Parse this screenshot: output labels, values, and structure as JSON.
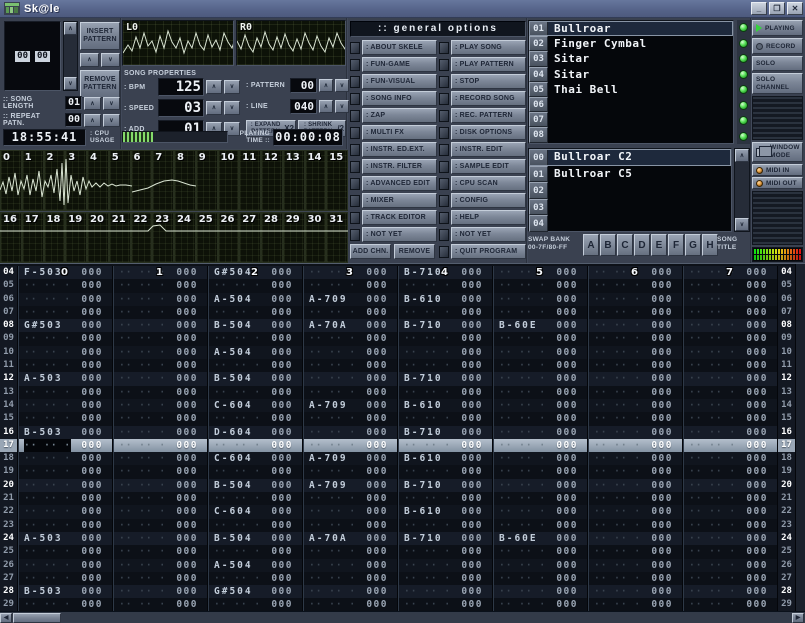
{
  "window": {
    "title": "Sk@le",
    "minimize": "_",
    "maximize": "❐",
    "close": "✕"
  },
  "order_panel": {
    "rows": [
      {
        "position": "00",
        "pattern": "00"
      }
    ],
    "insert_button": "INSERT PATTERN",
    "remove_button": "REMOVE PATTERN",
    "song_length_label": ":: SONG LENGTH",
    "song_length_value": "01",
    "repeat_label": ":: REPEAT PATN.",
    "repeat_value": "00"
  },
  "scopes": {
    "left": "L0",
    "right": "R0"
  },
  "song_properties": {
    "title": "SONG PROPERTIES",
    "bpm_label": ": BPM",
    "bpm_value": "125",
    "speed_label": ": SPEED",
    "speed_value": "03",
    "add_label": ": ADD",
    "add_value": "01",
    "pattern_label": ": PATTERN",
    "pattern_value": "00",
    "line_label": ": LINE",
    "line_value": "040",
    "expand_label": ": EXPAND PATTERN",
    "expand_value": "X2",
    "shrink_label": ": SHRINK PATTERN",
    "shrink_value": "/2"
  },
  "status": {
    "clock": "18:55:41",
    "cpu_label": ": CPU USAGE",
    "playing_label": "PLAYING TIME ::",
    "playing_time": "00:00:08"
  },
  "channel_scopes": {
    "row1": [
      "0",
      "1",
      "2",
      "3",
      "4",
      "5",
      "6",
      "7",
      "8",
      "9",
      "10",
      "11",
      "12",
      "13",
      "14",
      "15"
    ],
    "row2": [
      "16",
      "17",
      "18",
      "19",
      "20",
      "21",
      "22",
      "23",
      "24",
      "25",
      "26",
      "27",
      "28",
      "29",
      "30",
      "31"
    ]
  },
  "menu": {
    "title": ":: general options",
    "left_items": [
      ": ABOUT SKELE",
      ": FUN-GAME",
      ": FUN-VISUAL",
      ": SONG INFO",
      ": ZAP",
      ": MULTI FX",
      ": INSTR. ED.EXT.",
      ": INSTR. FILTER",
      ": ADVANCED EDIT",
      ": MIXER",
      ": TRACK EDITOR",
      ": NOT YET"
    ],
    "left_bottom": [
      "ADD CHN.",
      "REMOVE"
    ],
    "right_items": [
      ": PLAY SONG",
      ": PLAY PATTERN",
      ": STOP",
      ": RECORD SONG",
      ": REC. PATTERN",
      ": DISK OPTIONS",
      ": INSTR. EDIT",
      ": SAMPLE EDIT",
      ": CPU SCAN",
      ": CONFIG",
      ": HELP",
      ": NOT YET",
      ": QUIT PROGRAM"
    ]
  },
  "instruments": [
    {
      "num": "01",
      "name": "Bullroar",
      "selected": true
    },
    {
      "num": "02",
      "name": "Finger Cymbal"
    },
    {
      "num": "03",
      "name": "Sitar"
    },
    {
      "num": "04",
      "name": "Sitar"
    },
    {
      "num": "05",
      "name": "Thai Bell"
    },
    {
      "num": "06",
      "name": ""
    },
    {
      "num": "07",
      "name": ""
    },
    {
      "num": "08",
      "name": ""
    }
  ],
  "samples": [
    {
      "num": "00",
      "name": "Bullroar C2",
      "selected": true
    },
    {
      "num": "01",
      "name": "Bullroar C5"
    },
    {
      "num": "02",
      "name": ""
    },
    {
      "num": "03",
      "name": ""
    },
    {
      "num": "04",
      "name": ""
    }
  ],
  "swap_bank": {
    "label": "SWAP BANK 00-7F/80-FF",
    "buttons": [
      "A",
      "B",
      "C",
      "D",
      "E",
      "F",
      "G",
      "H"
    ],
    "song_title": "SONG TITLE"
  },
  "transport": {
    "playing": "PLAYING",
    "record": "RECORD",
    "solo": "SOLO",
    "solo_channel": "SOLO CHANNEL",
    "window_mode": "WINDOW MODE",
    "midi_in": "MIDI IN",
    "midi_out": "MIDI OUT"
  },
  "colors": {
    "led_green": "#55e055",
    "midi_led": "#e09a3e",
    "cursor_bar": "#9aa7b6",
    "play_icon": "#35d23c",
    "panel": "#3a4150",
    "pattern_bg": "#0d1118"
  },
  "pattern_editor": {
    "channel_headers": [
      "0",
      "1",
      "2",
      "3",
      "4",
      "5",
      "6",
      "7"
    ],
    "cursor_row": "17",
    "empty_effect": "000",
    "empty_note": "·· ·· ·",
    "rows": [
      {
        "n": "04",
        "cells": [
          "F-503",
          "",
          "G#504",
          "",
          "B-710",
          "",
          "",
          ""
        ]
      },
      {
        "n": "05",
        "cells": [
          "",
          "",
          "",
          "",
          "",
          "",
          "",
          ""
        ]
      },
      {
        "n": "06",
        "cells": [
          "",
          "",
          "A-504",
          "A-709",
          "B-610",
          "",
          "",
          ""
        ]
      },
      {
        "n": "07",
        "cells": [
          "",
          "",
          "",
          "",
          "",
          "",
          "",
          ""
        ]
      },
      {
        "n": "08",
        "cells": [
          "G#503",
          "",
          "B-504",
          "A-70A",
          "B-710",
          "B-60E",
          "",
          ""
        ]
      },
      {
        "n": "09",
        "cells": [
          "",
          "",
          "",
          "",
          "",
          "",
          "",
          ""
        ]
      },
      {
        "n": "10",
        "cells": [
          "",
          "",
          "A-504",
          "",
          "",
          "",
          "",
          ""
        ]
      },
      {
        "n": "11",
        "cells": [
          "",
          "",
          "",
          "",
          "",
          "",
          "",
          ""
        ]
      },
      {
        "n": "12",
        "cells": [
          "A-503",
          "",
          "B-504",
          "",
          "B-710",
          "",
          "",
          ""
        ]
      },
      {
        "n": "13",
        "cells": [
          "",
          "",
          "",
          "",
          "",
          "",
          "",
          ""
        ]
      },
      {
        "n": "14",
        "cells": [
          "",
          "",
          "C-604",
          "A-709",
          "B-610",
          "",
          "",
          ""
        ]
      },
      {
        "n": "15",
        "cells": [
          "",
          "",
          "",
          "",
          "",
          "",
          "",
          ""
        ]
      },
      {
        "n": "16",
        "cells": [
          "B-503",
          "",
          "D-604",
          "",
          "B-710",
          "",
          "",
          ""
        ]
      },
      {
        "n": "17",
        "cells": [
          "",
          "",
          "",
          "",
          "",
          "",
          "",
          ""
        ]
      },
      {
        "n": "18",
        "cells": [
          "",
          "",
          "C-604",
          "A-709",
          "B-610",
          "",
          "",
          ""
        ]
      },
      {
        "n": "19",
        "cells": [
          "",
          "",
          "",
          "",
          "",
          "",
          "",
          ""
        ]
      },
      {
        "n": "20",
        "cells": [
          "",
          "",
          "B-504",
          "A-709",
          "B-710",
          "",
          "",
          ""
        ]
      },
      {
        "n": "21",
        "cells": [
          "",
          "",
          "",
          "",
          "",
          "",
          "",
          ""
        ]
      },
      {
        "n": "22",
        "cells": [
          "",
          "",
          "C-604",
          "",
          "B-610",
          "",
          "",
          ""
        ]
      },
      {
        "n": "23",
        "cells": [
          "",
          "",
          "",
          "",
          "",
          "",
          "",
          ""
        ]
      },
      {
        "n": "24",
        "cells": [
          "A-503",
          "",
          "B-504",
          "A-70A",
          "B-710",
          "B-60E",
          "",
          ""
        ]
      },
      {
        "n": "25",
        "cells": [
          "",
          "",
          "",
          "",
          "",
          "",
          "",
          ""
        ]
      },
      {
        "n": "26",
        "cells": [
          "",
          "",
          "A-504",
          "",
          "",
          "",
          "",
          ""
        ]
      },
      {
        "n": "27",
        "cells": [
          "",
          "",
          "",
          "",
          "",
          "",
          "",
          ""
        ]
      },
      {
        "n": "28",
        "cells": [
          "B-503",
          "",
          "G#504",
          "",
          "",
          "",
          "",
          ""
        ]
      },
      {
        "n": "29",
        "cells": [
          "",
          "",
          "",
          "",
          "",
          "",
          "",
          ""
        ]
      }
    ]
  }
}
